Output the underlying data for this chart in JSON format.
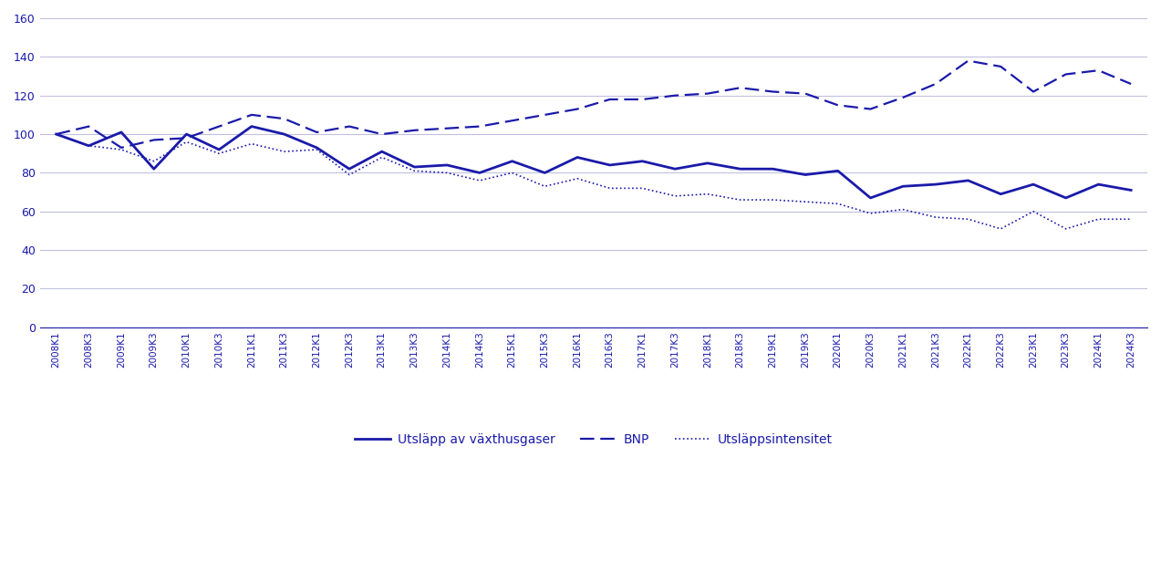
{
  "title": "",
  "color": "#1a1aaa",
  "bg_color": "#ffffff",
  "grid_color": "#c0c0e0",
  "ylim": [
    0,
    160
  ],
  "yticks": [
    0,
    20,
    40,
    60,
    80,
    100,
    120,
    140,
    160
  ],
  "x_labels": [
    "2008K1",
    "2008K3",
    "2009K1",
    "2009K3",
    "2010K1",
    "2010K3",
    "2011K1",
    "2011K3",
    "2012K1",
    "2012K3",
    "2013K1",
    "2013K3",
    "2014K1",
    "2014K3",
    "2015K1",
    "2015K3",
    "2016K1",
    "2016K3",
    "2017K1",
    "2017K3",
    "2018K1",
    "2018K3",
    "2019K1",
    "2019K3",
    "2020K1",
    "2020K3",
    "2021K1",
    "2021K3",
    "2022K1",
    "2022K3",
    "2023K1",
    "2023K3",
    "2024K1",
    "2024K3"
  ],
  "ghg": [
    100,
    94,
    101,
    82,
    100,
    92,
    104,
    100,
    93,
    82,
    91,
    83,
    84,
    80,
    86,
    80,
    88,
    84,
    86,
    82,
    85,
    82,
    82,
    79,
    81,
    67,
    73,
    74,
    76,
    69,
    74,
    67,
    74,
    71
  ],
  "bnp": [
    100,
    104,
    93,
    97,
    98,
    104,
    110,
    108,
    101,
    104,
    100,
    102,
    103,
    104,
    107,
    110,
    113,
    118,
    118,
    120,
    121,
    124,
    122,
    121,
    115,
    113,
    119,
    126,
    138,
    135,
    122,
    131,
    133,
    126
  ],
  "intensity": [
    100,
    94,
    92,
    86,
    96,
    90,
    95,
    91,
    92,
    79,
    88,
    81,
    80,
    76,
    80,
    73,
    77,
    72,
    72,
    68,
    69,
    66,
    66,
    65,
    64,
    59,
    61,
    57,
    56,
    51,
    60,
    51,
    56,
    56
  ],
  "legend": [
    {
      "label": "Utsläpp av växthusgaser",
      "style": "solid"
    },
    {
      "label": "BNP",
      "style": "dashed"
    },
    {
      "label": "Utsläppsintensitet",
      "style": "dotted"
    }
  ]
}
